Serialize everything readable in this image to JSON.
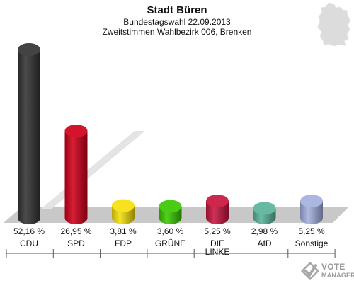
{
  "header": {
    "title": "Stadt Büren",
    "subtitle1": "Bundestagswahl 22.09.2013",
    "subtitle2": "Zweitstimmen Wahlbezirk 006, Brenken"
  },
  "watermark": {
    "line1": "VOTE",
    "line2": "MANAGER"
  },
  "colors": {
    "CDU": "#333333",
    "SPD": "#d0001a",
    "FDP": "#f5e00a",
    "GRÜNE": "#3ac800",
    "DIE LINKE": "#c8153f",
    "AfD": "#5ab49a",
    "Sonstige": "#a4b0de",
    "floor": "#c8c8c8"
  },
  "chart_data": {
    "type": "bar",
    "categories": [
      "CDU",
      "SPD",
      "FDP",
      "GRÜNE",
      "DIE LINKE",
      "AfD",
      "Sonstige"
    ],
    "category_lines": [
      [
        "CDU"
      ],
      [
        "SPD"
      ],
      [
        "FDP"
      ],
      [
        "GRÜNE"
      ],
      [
        "DIE",
        "LINKE"
      ],
      [
        "AfD"
      ],
      [
        "Sonstige"
      ]
    ],
    "values": [
      52.16,
      26.95,
      3.81,
      3.6,
      5.25,
      2.98,
      5.25
    ],
    "value_labels": [
      "52,16 %",
      "26,95 %",
      "3,81 %",
      "3,60 %",
      "5,25 %",
      "2,98 %",
      "5,25 %"
    ],
    "title": "Stadt Büren",
    "xlabel": "",
    "ylabel": "",
    "grid": false,
    "legend": "none"
  }
}
